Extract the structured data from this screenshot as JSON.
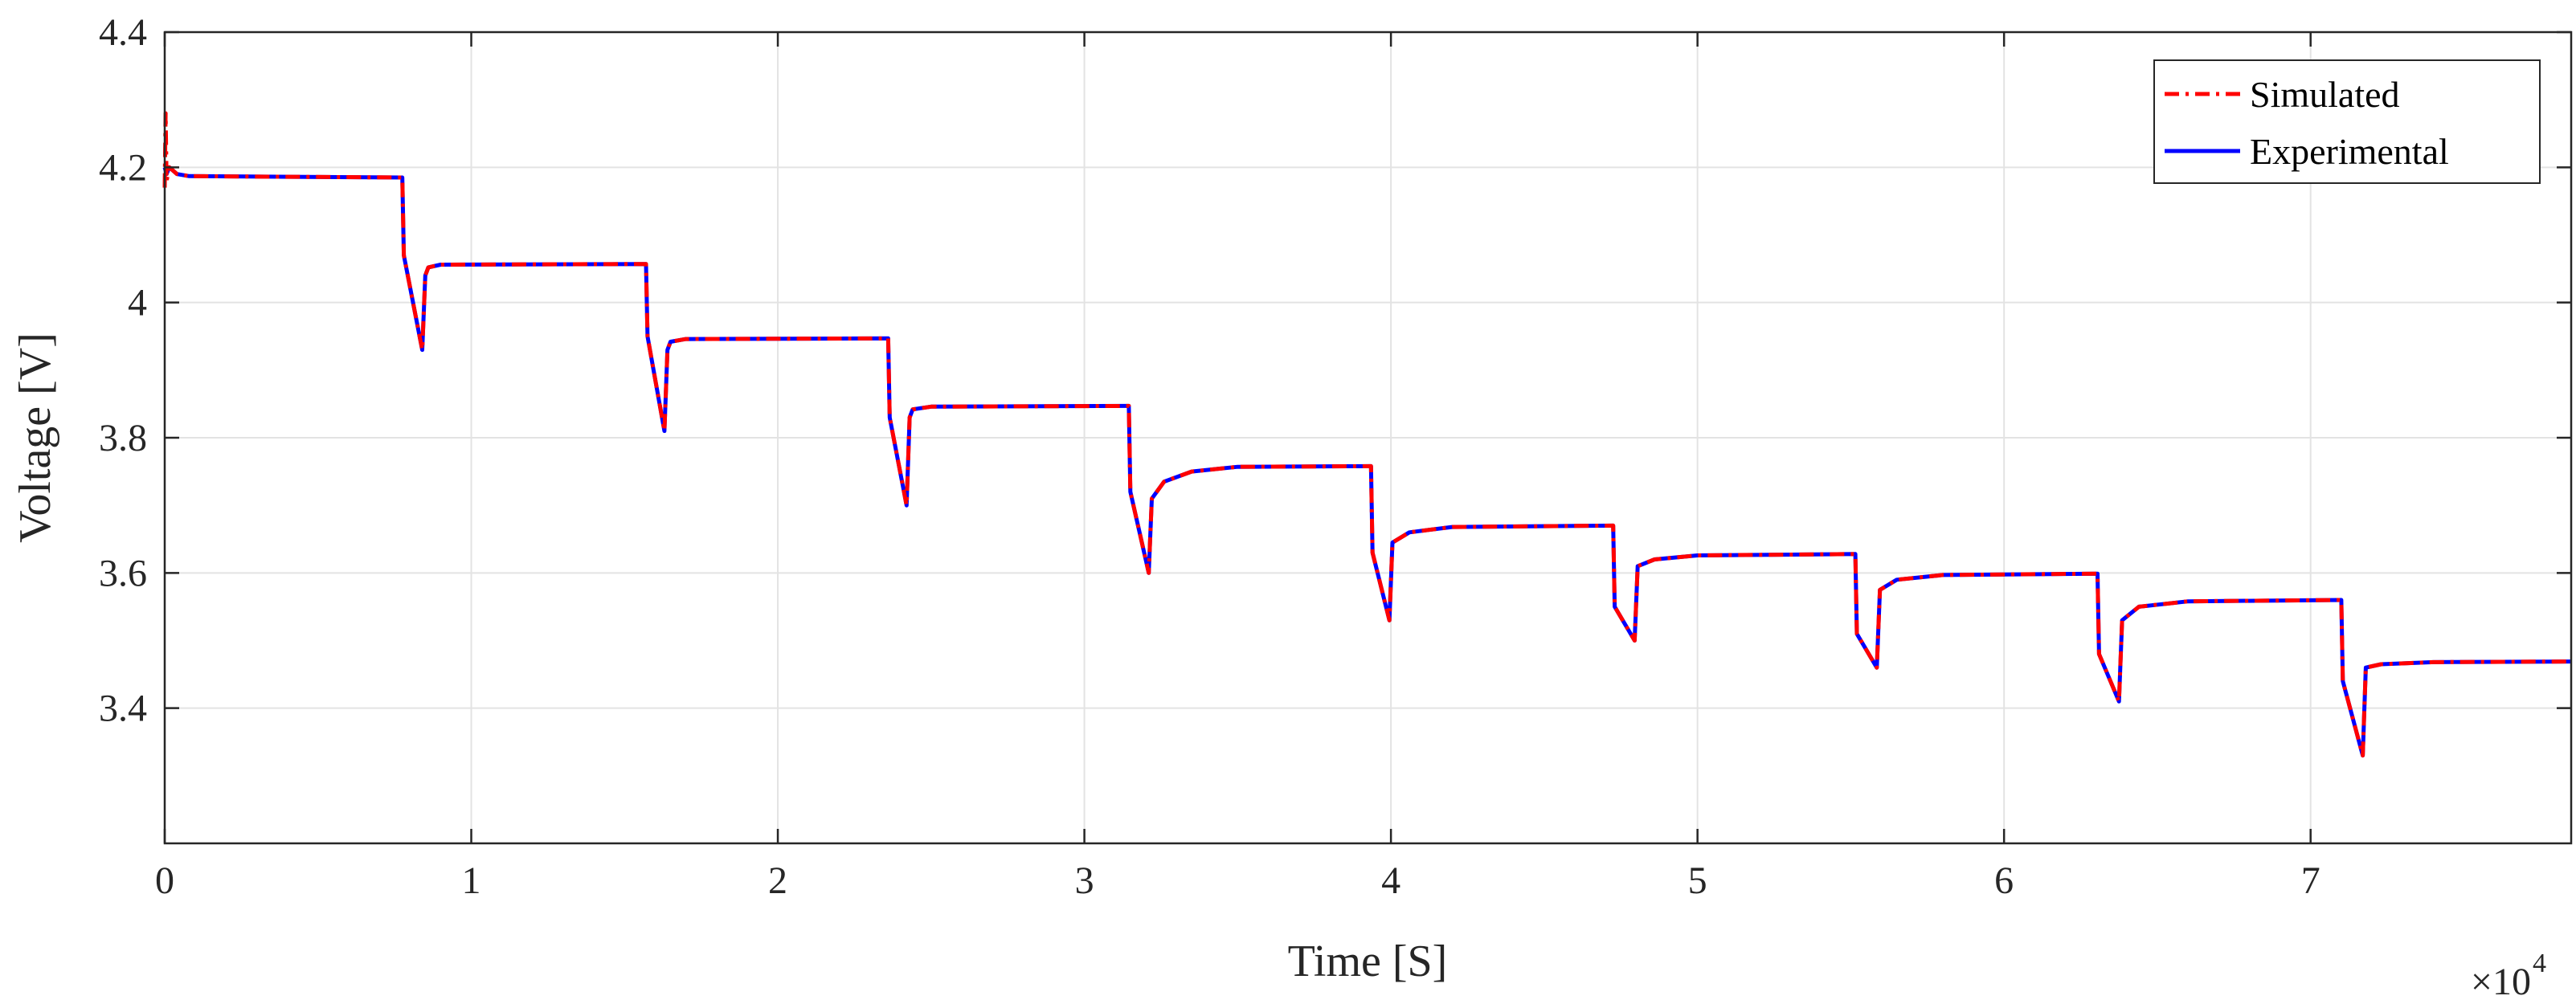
{
  "chart_data": {
    "type": "line",
    "title": "",
    "xlabel": "Time [S]",
    "ylabel": "Voltage [V]",
    "x_exponent_label": "×10",
    "x_exponent_power": "4",
    "x_scale": 10000,
    "xlim": [
      0,
      78500
    ],
    "ylim": [
      3.2,
      4.4
    ],
    "x_ticks": [
      0,
      10000,
      20000,
      30000,
      40000,
      50000,
      60000,
      70000
    ],
    "x_tick_labels": [
      "0",
      "1",
      "2",
      "3",
      "4",
      "5",
      "6",
      "7"
    ],
    "y_ticks": [
      3.4,
      3.6,
      3.8,
      4.0,
      4.2,
      4.4
    ],
    "y_tick_labels": [
      "3.4",
      "3.6",
      "3.8",
      "4",
      "4.2",
      "4.4"
    ],
    "grid": true,
    "legend_position": "top-right",
    "series": [
      {
        "name": "Simulated",
        "color": "#ff0000",
        "style": "dash-dot",
        "points": [
          [
            0,
            4.17
          ],
          [
            30,
            4.28
          ],
          [
            60,
            4.18
          ],
          [
            150,
            4.2
          ],
          [
            400,
            4.19
          ],
          [
            800,
            4.187
          ],
          [
            7750,
            4.185
          ],
          [
            7800,
            4.07
          ],
          [
            8400,
            3.93
          ],
          [
            8500,
            4.04
          ],
          [
            8600,
            4.052
          ],
          [
            9000,
            4.056
          ],
          [
            15700,
            4.057
          ],
          [
            15750,
            3.95
          ],
          [
            16300,
            3.81
          ],
          [
            16400,
            3.93
          ],
          [
            16500,
            3.942
          ],
          [
            17000,
            3.946
          ],
          [
            23600,
            3.947
          ],
          [
            23650,
            3.83
          ],
          [
            24200,
            3.7
          ],
          [
            24300,
            3.83
          ],
          [
            24400,
            3.842
          ],
          [
            25000,
            3.846
          ],
          [
            31450,
            3.847
          ],
          [
            31500,
            3.72
          ],
          [
            32100,
            3.6
          ],
          [
            32200,
            3.71
          ],
          [
            32600,
            3.735
          ],
          [
            33500,
            3.75
          ],
          [
            35000,
            3.757
          ],
          [
            39350,
            3.758
          ],
          [
            39400,
            3.63
          ],
          [
            39950,
            3.53
          ],
          [
            40050,
            3.645
          ],
          [
            40600,
            3.66
          ],
          [
            42000,
            3.668
          ],
          [
            47250,
            3.67
          ],
          [
            47300,
            3.55
          ],
          [
            47950,
            3.5
          ],
          [
            48050,
            3.61
          ],
          [
            48600,
            3.62
          ],
          [
            50000,
            3.626
          ],
          [
            55150,
            3.628
          ],
          [
            55200,
            3.51
          ],
          [
            55850,
            3.46
          ],
          [
            55950,
            3.575
          ],
          [
            56500,
            3.59
          ],
          [
            58000,
            3.597
          ],
          [
            63050,
            3.599
          ],
          [
            63100,
            3.48
          ],
          [
            63750,
            3.41
          ],
          [
            63850,
            3.53
          ],
          [
            64400,
            3.55
          ],
          [
            66000,
            3.558
          ],
          [
            71000,
            3.56
          ],
          [
            71050,
            3.44
          ],
          [
            71700,
            3.33
          ],
          [
            71800,
            3.46
          ],
          [
            72300,
            3.465
          ],
          [
            74000,
            3.468
          ],
          [
            78500,
            3.469
          ]
        ]
      },
      {
        "name": "Experimental",
        "color": "#0000ff",
        "style": "solid",
        "points": [
          [
            0,
            4.2
          ],
          [
            60,
            4.19
          ],
          [
            150,
            4.2
          ],
          [
            400,
            4.19
          ],
          [
            800,
            4.187
          ],
          [
            7750,
            4.185
          ],
          [
            7800,
            4.07
          ],
          [
            8400,
            3.93
          ],
          [
            8500,
            4.04
          ],
          [
            8600,
            4.052
          ],
          [
            9000,
            4.056
          ],
          [
            15700,
            4.057
          ],
          [
            15750,
            3.95
          ],
          [
            16300,
            3.81
          ],
          [
            16400,
            3.93
          ],
          [
            16500,
            3.942
          ],
          [
            17000,
            3.946
          ],
          [
            23600,
            3.947
          ],
          [
            23650,
            3.83
          ],
          [
            24200,
            3.7
          ],
          [
            24300,
            3.83
          ],
          [
            24400,
            3.842
          ],
          [
            25000,
            3.846
          ],
          [
            31450,
            3.847
          ],
          [
            31500,
            3.72
          ],
          [
            32100,
            3.6
          ],
          [
            32200,
            3.71
          ],
          [
            32600,
            3.735
          ],
          [
            33500,
            3.75
          ],
          [
            35000,
            3.757
          ],
          [
            39350,
            3.758
          ],
          [
            39400,
            3.63
          ],
          [
            39950,
            3.53
          ],
          [
            40050,
            3.645
          ],
          [
            40600,
            3.66
          ],
          [
            42000,
            3.668
          ],
          [
            47250,
            3.67
          ],
          [
            47300,
            3.55
          ],
          [
            47950,
            3.5
          ],
          [
            48050,
            3.61
          ],
          [
            48600,
            3.62
          ],
          [
            50000,
            3.626
          ],
          [
            55150,
            3.628
          ],
          [
            55200,
            3.51
          ],
          [
            55850,
            3.46
          ],
          [
            55950,
            3.575
          ],
          [
            56500,
            3.59
          ],
          [
            58000,
            3.597
          ],
          [
            63050,
            3.599
          ],
          [
            63100,
            3.48
          ],
          [
            63750,
            3.41
          ],
          [
            63850,
            3.53
          ],
          [
            64400,
            3.55
          ],
          [
            66000,
            3.558
          ],
          [
            71000,
            3.56
          ],
          [
            71050,
            3.44
          ],
          [
            71700,
            3.33
          ],
          [
            71800,
            3.46
          ],
          [
            72300,
            3.465
          ],
          [
            74000,
            3.468
          ],
          [
            78500,
            3.469
          ]
        ]
      }
    ]
  }
}
